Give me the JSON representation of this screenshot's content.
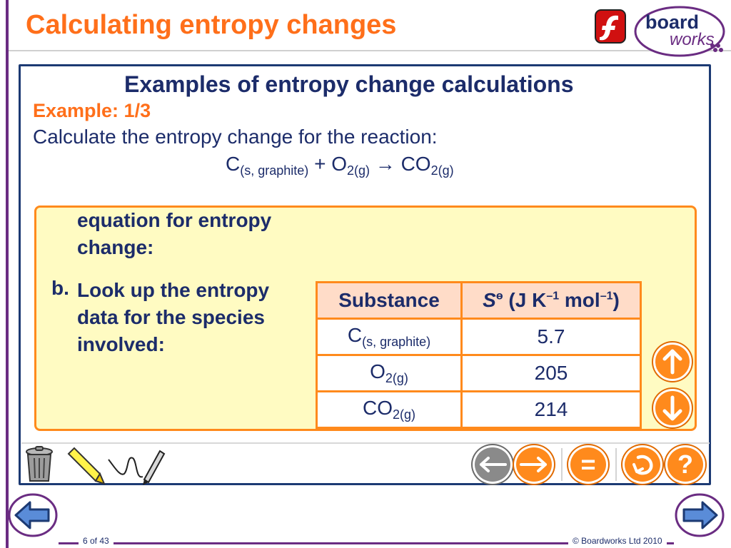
{
  "header": {
    "title": "Calculating entropy changes",
    "brand_top": "board",
    "brand_bottom": "works"
  },
  "panel": {
    "heading": "Examples of entropy change calculations",
    "example_label": "Example: 1/3",
    "question": "Calculate the entropy change for the reaction:",
    "equation": {
      "c": "C",
      "c_state": "(s, graphite)",
      "plus": "+",
      "o2": "O",
      "o2_state": "2(g)",
      "arrow": "→",
      "co2": "CO",
      "co2_state": "2(g)"
    },
    "step_a_text": "equation for entropy change:",
    "step_b_letter": "b.",
    "step_b_text": "Look up the entropy data for the species involved:"
  },
  "table": {
    "header_substance": "Substance",
    "header_s": "S",
    "header_theta": "ө",
    "header_units_a": "(J K",
    "header_units_b": "–1",
    "header_units_c": " mol",
    "header_units_d": "–1",
    "header_units_e": ")",
    "rows": [
      {
        "main": "C",
        "state": "(s, graphite)",
        "value": "5.7"
      },
      {
        "main": "O",
        "state": "2(g)",
        "value": "205"
      },
      {
        "main": "CO",
        "state": "2(g)",
        "value": "214"
      }
    ]
  },
  "toolbar": {
    "back_icon": "left-arrow-icon",
    "forward_icon": "right-arrow-icon",
    "equals_symbol": "=",
    "help_symbol": "?"
  },
  "footer": {
    "page": "6 of 43",
    "copyright": "© Boardworks Ltd 2010"
  },
  "colors": {
    "accent_orange": "#ff8a1c",
    "title_orange": "#ff6f1a",
    "navy": "#1c2c6a",
    "purple": "#6a2c82",
    "box_yellow": "#fffbc2"
  }
}
